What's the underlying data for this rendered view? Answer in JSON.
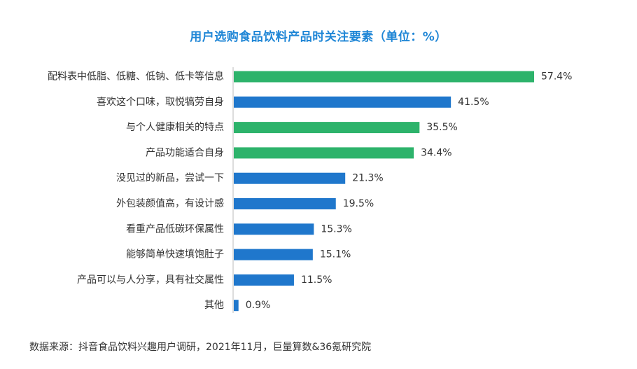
{
  "chart_data": {
    "type": "bar",
    "orientation": "horizontal",
    "title": "用户选购食品饮料产品时关注要素（单位：%）",
    "categories": [
      "配料表中低脂、低糖、低钠、低卡等信息",
      "喜欢这个口味，取悦犒劳自身",
      "与个人健康相关的特点",
      "产品功能适合自身",
      "没见过的新品，尝试一下",
      "外包装颜值高，有设计感",
      "看重产品低碳环保属性",
      "能够简单快速填饱肚子",
      "产品可以与人分享，具有社交属性",
      "其他"
    ],
    "values": [
      57.4,
      41.5,
      35.5,
      34.4,
      21.3,
      19.5,
      15.3,
      15.1,
      11.5,
      0.9
    ],
    "value_labels": [
      "57.4%",
      "41.5%",
      "35.5%",
      "34.4%",
      "21.3%",
      "19.5%",
      "15.3%",
      "15.1%",
      "11.5%",
      "0.9%"
    ],
    "bar_colors": [
      "#2db36b",
      "#1f77cc",
      "#2db36b",
      "#2db36b",
      "#1f77cc",
      "#1f77cc",
      "#1f77cc",
      "#1f77cc",
      "#1f77cc",
      "#1f77cc"
    ],
    "xlim": [
      0,
      57.4
    ],
    "grid": false,
    "legend": "none"
  },
  "source": "数据来源：抖音食品饮料兴趣用户调研，2021年11月，巨量算数&36氪研究院",
  "colors": {
    "title": "#1f86d6",
    "label_text": "#333333",
    "axis_line": "#bbbbbb"
  }
}
